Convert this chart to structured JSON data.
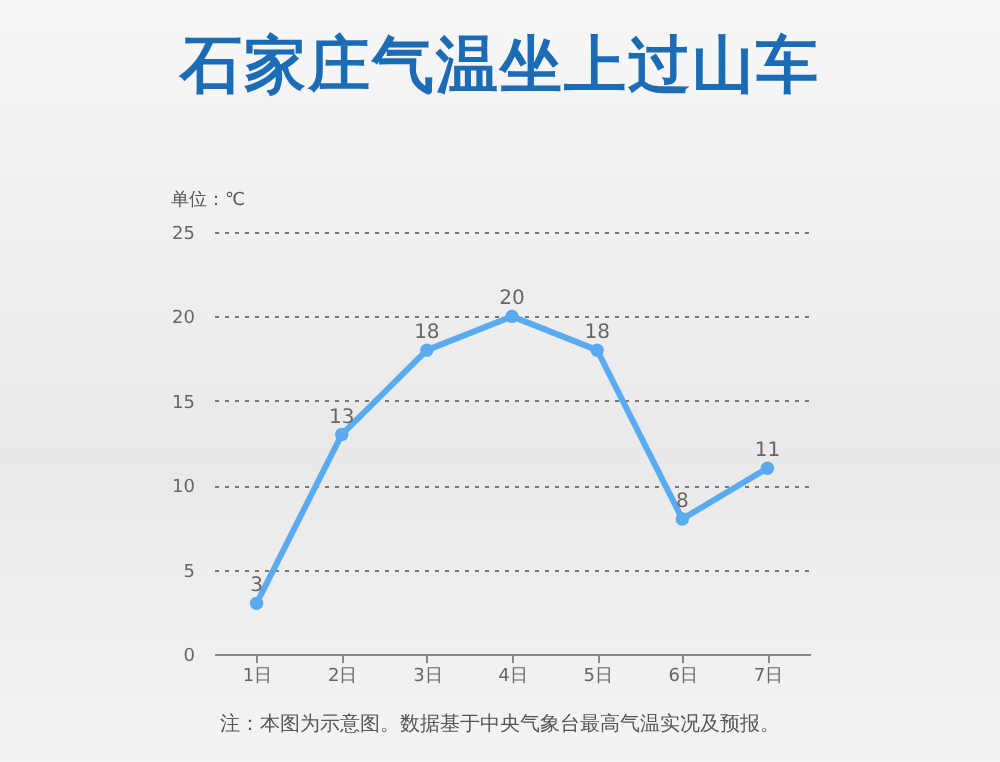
{
  "chart_data": {
    "type": "line",
    "title": "石家庄气温坐上过山车",
    "ylabel": "单位：℃",
    "annotations": [
      "注：本图为示意图。数据基于中央气象台最高气温实况及预报。"
    ],
    "categories": [
      "1日",
      "2日",
      "3日",
      "4日",
      "5日",
      "6日",
      "7日"
    ],
    "series": [
      {
        "color": "#5aaaf0",
        "values": [
          3,
          13,
          18,
          20,
          18,
          8,
          11
        ]
      }
    ],
    "ylim": [
      0,
      25
    ],
    "yticks": [
      0,
      5,
      10,
      15,
      20,
      25
    ],
    "grid": "y",
    "marker": "circle",
    "line_style": "solid",
    "data_labels": true
  }
}
